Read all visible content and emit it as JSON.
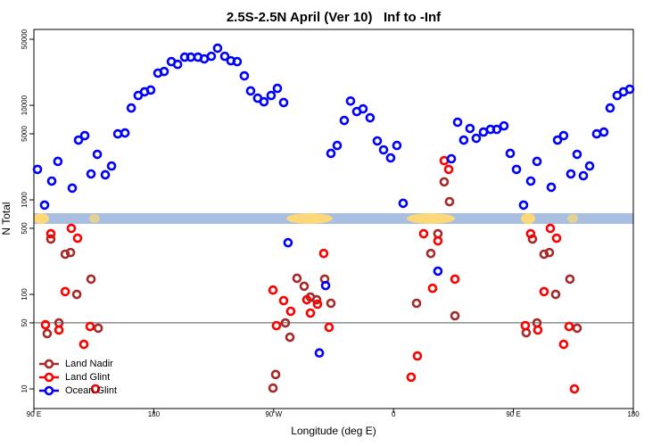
{
  "chart_data": {
    "type": "scatter",
    "title": "2.5S-2.5N April (Ver 10)   Inf to -Inf",
    "xlabel": "Longitude (deg E)",
    "ylabel": "N Total",
    "xlim": [
      90,
      540
    ],
    "xticks": [
      {
        "value": 90,
        "label": "90 E"
      },
      180,
      {
        "value": 270,
        "label": "90 W"
      },
      {
        "value": 360,
        "label": "0"
      },
      {
        "value": 450,
        "label": "90 E"
      },
      {
        "value": 540,
        "label": "180"
      }
    ],
    "ylim": [
      6.2,
      63500
    ],
    "log_y": true,
    "yticks": [
      10,
      50,
      100,
      500,
      1000,
      5000,
      10000,
      50000
    ],
    "hline": 50,
    "legend": "bottom-left",
    "series": [
      {
        "name": "Land Nadir",
        "color": "#a52a2a",
        "x": [
          102.7,
          100.0,
          108.8,
          113.5,
          117.5,
          122.2,
          132.9,
          138.3,
          269.5,
          271.5,
          278.8,
          282.2,
          287.5,
          292.9,
          297.6,
          302.3,
          308.3,
          313.0,
          377.3,
          388.0,
          393.3,
          398.0,
          402.0,
          406.1,
          459.6,
          464.3,
          467.7,
          473.0,
          477.0,
          481.7,
          492.4,
          497.8
        ],
        "values": [
          385,
          38.5,
          49.9,
          266,
          277,
          100,
          145,
          43.9,
          10.2,
          14.2,
          49.9,
          35.2,
          148,
          122,
          93.7,
          87.7,
          145,
          80.5,
          80.5,
          271,
          438,
          1550,
          957,
          59.4,
          39.3,
          385,
          49.9,
          266,
          277,
          100,
          145,
          43.9
        ]
      },
      {
        "name": "Land Glint",
        "color": "#ff0000",
        "x": [
          98.7,
          102.7,
          108.8,
          113.5,
          118.1,
          122.8,
          127.5,
          132.2,
          136.2,
          269.5,
          272.1,
          277.5,
          282.8,
          294.9,
          297.6,
          302.9,
          307.6,
          311.6,
          373.2,
          377.9,
          382.6,
          389.3,
          393.3,
          398.0,
          401.4,
          406.1,
          458.9,
          462.9,
          468.3,
          473.0,
          477.7,
          482.4,
          487.7,
          491.8,
          495.8
        ],
        "values": [
          47.7,
          438,
          42.0,
          107,
          499,
          393,
          29.6,
          45.7,
          10,
          111,
          46.7,
          85.9,
          66.2,
          87.7,
          63.4,
          78.7,
          271,
          44.8,
          13.3,
          22.3,
          438,
          116,
          368,
          2600,
          2100,
          145,
          46.7,
          438,
          42.0,
          107,
          499,
          393,
          29.6,
          45.7,
          10
        ]
      },
      {
        "name": "Ocean Glint",
        "color": "#0000ff",
        "x": [
          92.7,
          98.0,
          103.4,
          108.0,
          118.8,
          123.5,
          128.2,
          132.9,
          137.6,
          143.6,
          148.3,
          153.0,
          158.4,
          163.1,
          168.3,
          173.1,
          177.7,
          183.1,
          187.8,
          193.2,
          197.9,
          203.2,
          207.8,
          213.2,
          217.9,
          223.2,
          227.9,
          233.3,
          237.9,
          242.6,
          248.0,
          252.7,
          258.0,
          262.7,
          268.1,
          272.8,
          277.5,
          280.8,
          304.3,
          309.0,
          313.0,
          317.7,
          323.0,
          327.7,
          332.4,
          337.1,
          342.4,
          347.8,
          352.5,
          357.8,
          362.5,
          367.2,
          393.3,
          403.4,
          408.1,
          412.7,
          417.4,
          422.1,
          427.5,
          432.8,
          437.5,
          442.9,
          447.6,
          452.3,
          457.6,
          463.0,
          467.7,
          478.4,
          483.1,
          487.7,
          493.1,
          497.8,
          502.5,
          507.2,
          512.5,
          517.9,
          522.6,
          527.9,
          532.6,
          537.3
        ],
        "values": [
          2100,
          880,
          1580,
          2550,
          1330,
          4290,
          4780,
          1880,
          3030,
          1840,
          2280,
          4990,
          5100,
          9370,
          12700,
          13900,
          14500,
          21900,
          22800,
          29000,
          27100,
          32300,
          32300,
          32300,
          31000,
          33000,
          40200,
          33000,
          29600,
          29000,
          20500,
          14200,
          11900,
          10900,
          12700,
          15100,
          10700,
          352,
          24,
          124,
          3100,
          3760,
          6920,
          11100,
          8590,
          9170,
          7380,
          4200,
          3380,
          2780,
          3760,
          920,
          176,
          2720,
          6620,
          4290,
          5690,
          4480,
          5210,
          5560,
          5560,
          6060,
          3100,
          2100,
          880,
          1580,
          2550,
          1360,
          4290,
          4780,
          1880,
          3030,
          1800,
          2280,
          4990,
          5210,
          9370,
          12700,
          13900,
          14800
        ]
      }
    ]
  }
}
